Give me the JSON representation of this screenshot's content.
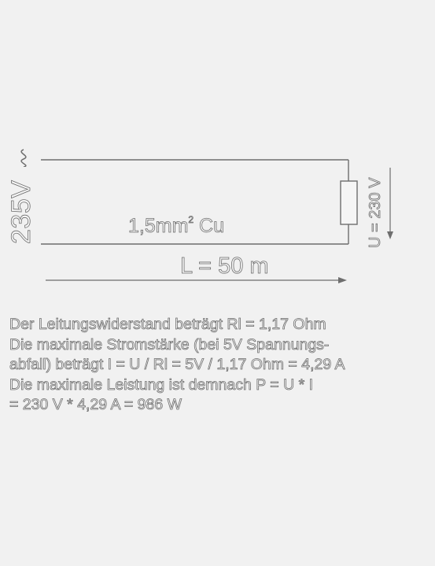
{
  "supply_voltage": "235V",
  "load_voltage": "U = 230 V",
  "cable": {
    "prefix": "1,5mm",
    "superscript": "2",
    "suffix": " Cu"
  },
  "length": "L = 50 m",
  "notes": [
    "Der Leitungswiderstand beträgt Rl =  1,17 Ohm",
    "Die maximale Stromstärke (bei 5V Spannungs-",
    "abfall) beträgt I = U / Rl = 5V / 1,17 Ohm = 4,29 A",
    "Die maximale Leistung ist demnach P = U * I",
    "= 230 V * 4,29 A = 986 W"
  ],
  "colors": {
    "background": "#f1f1f1",
    "stroke": "#6e6e6e",
    "fill": "#f5f5f5"
  }
}
